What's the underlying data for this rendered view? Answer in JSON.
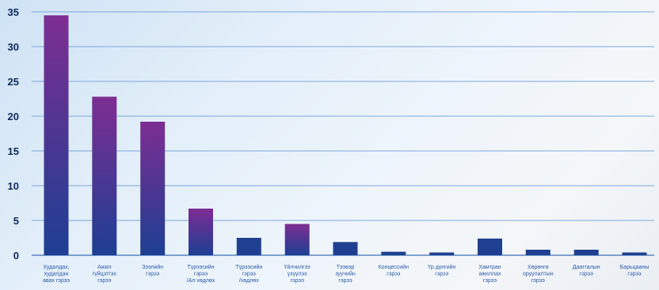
{
  "chart_data": {
    "type": "bar",
    "title": "",
    "xlabel": "",
    "ylabel": "",
    "ylim": [
      0,
      35
    ],
    "yticks": [
      0,
      5,
      10,
      15,
      20,
      25,
      30,
      35
    ],
    "grid": true,
    "categories": [
      "Худалдах, худалдан авах гэрээ",
      "Ажил гүйцэтгэх гэрээ",
      "Зээлийн гэрээ",
      "Түрээсийн гэрээ /Ал хөдлөх",
      "Түрээсийн гэрээ /хөдлөх",
      "Үйлчилгээ үзүүлэх гэрээ",
      "Тээвэр зуучийн гэрээ",
      "Концессийн гэрээ",
      "Үр дүнгийн гэрээ",
      "Хамтран ажиллах гэрээ",
      "Хөрөнгө оруулалтын гэрээ",
      "Даатгалын гэрээ",
      "Барьцааны гэрээ"
    ],
    "category_lines": [
      [
        "Худалдах,",
        "худалдан",
        "авах гэрээ"
      ],
      [
        "Ажил",
        "гүйцэтгэх",
        "гэрээ"
      ],
      [
        "Зээлийн",
        "гэрээ"
      ],
      [
        "Түрээсийн",
        "гэрээ",
        "/Ал хөдлөх"
      ],
      [
        "Түрээсийн",
        "гэрээ",
        "/хөдлөх"
      ],
      [
        "Үйлчилгээ",
        "үзүүлэх",
        "гэрээ"
      ],
      [
        "Тээвэр",
        "зуучийн",
        "гэрээ"
      ],
      [
        "Концессийн",
        "гэрээ"
      ],
      [
        "Үр дүнгийн",
        "гэрээ"
      ],
      [
        "Хамтран",
        "ажиллах",
        "гэрээ"
      ],
      [
        "Хөрөнгө",
        "оруулалтын",
        "гэрээ"
      ],
      [
        "Даатгалын",
        "гэрээ"
      ],
      [
        "Барьцааны",
        "гэрээ"
      ]
    ],
    "values": [
      34.5,
      22.8,
      19.2,
      6.7,
      2.5,
      4.5,
      1.9,
      0.5,
      0.4,
      2.4,
      0.8,
      0.8,
      0.4
    ],
    "colors": {
      "bar_top": "#7d2e92",
      "bar_bottom": "#1d3f93",
      "bar_flat": "#1f3f91",
      "grid": "#5b8fd0",
      "tick_text": "#0f2a5c",
      "label_text": "#2b5aa8"
    }
  }
}
